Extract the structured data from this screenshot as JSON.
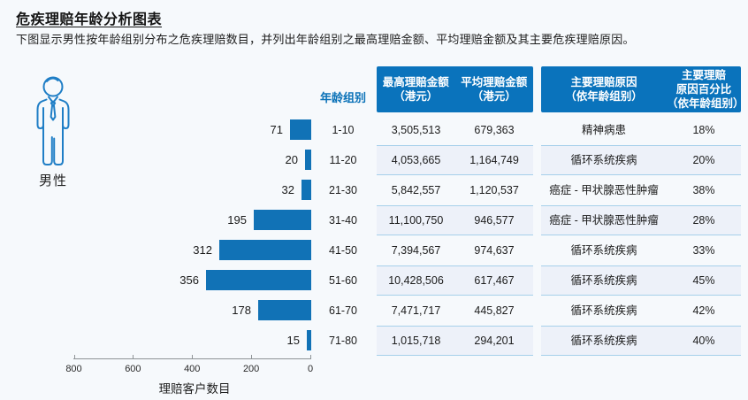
{
  "page": {
    "title": "危疾理赔年龄分析图表",
    "subtitle": "下图显示男性按年龄组别分布之危疾理赔数目，并列出年龄组别之最高理赔金额、平均理赔金额及其主要危疾理赔原因。",
    "gender_label": "男性",
    "gender_icon": "male-person-outline-icon"
  },
  "colors": {
    "background": "#f6f9fc",
    "bar": "#1172b6",
    "header_box": "#0a73bc",
    "stripe": "#edf1f9",
    "stripe_border": "#a6d0ea",
    "blue_text": "#0b72b8",
    "axis": "#8e9396",
    "icon": "#1f7ec6"
  },
  "chart_data": {
    "type": "bar",
    "orientation": "horizontal",
    "direction": "right-to-left (0 at right, bars grow leftward)",
    "categories": [
      "1-10",
      "11-20",
      "21-30",
      "31-40",
      "41-50",
      "51-60",
      "61-70",
      "71-80"
    ],
    "values": [
      71,
      20,
      32,
      195,
      312,
      356,
      178,
      15
    ],
    "xlabel": "理赔客户数目",
    "ylabel": "",
    "xlim": [
      0,
      800
    ],
    "axis_ticks": [
      "800",
      "600",
      "400",
      "200",
      "0"
    ],
    "grid": false,
    "bar_labels_shown": true
  },
  "table": {
    "age_header": "年龄组别",
    "headers": {
      "max_claim": "最高理赔金额\n（港元）",
      "avg_claim": "平均理赔金额\n（港元）",
      "main_cause": "主要理赔原因\n（依年龄组别）",
      "cause_pct": "主要理赔\n原因百分比\n（依年龄组别）"
    },
    "rows": [
      {
        "age": "1-10",
        "max": "3,505,513",
        "avg": "679,363",
        "cause": "精神病患",
        "pct": "18%"
      },
      {
        "age": "11-20",
        "max": "4,053,665",
        "avg": "1,164,749",
        "cause": "循环系统疾病",
        "pct": "20%"
      },
      {
        "age": "21-30",
        "max": "5,842,557",
        "avg": "1,120,537",
        "cause": "癌症 - 甲状腺恶性肿瘤",
        "pct": "38%"
      },
      {
        "age": "31-40",
        "max": "11,100,750",
        "avg": "946,577",
        "cause": "癌症 - 甲状腺恶性肿瘤",
        "pct": "28%"
      },
      {
        "age": "41-50",
        "max": "7,394,567",
        "avg": "974,637",
        "cause": "循环系统疾病",
        "pct": "33%"
      },
      {
        "age": "51-60",
        "max": "10,428,506",
        "avg": "617,467",
        "cause": "循环系统疾病",
        "pct": "45%"
      },
      {
        "age": "61-70",
        "max": "7,471,717",
        "avg": "445,827",
        "cause": "循环系统疾病",
        "pct": "42%"
      },
      {
        "age": "71-80",
        "max": "1,015,718",
        "avg": "294,201",
        "cause": "循环系统疾病",
        "pct": "40%"
      }
    ]
  }
}
